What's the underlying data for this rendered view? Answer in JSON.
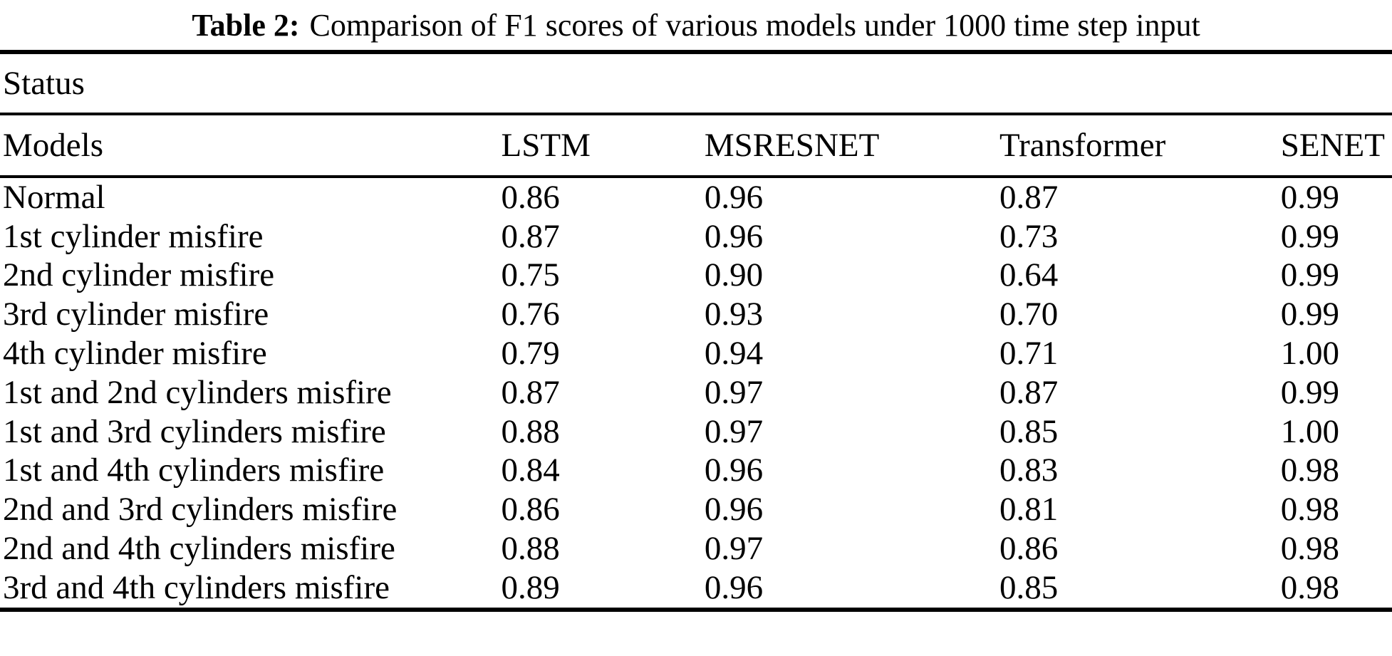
{
  "caption": {
    "label": "Table 2:",
    "text": "Comparison of F1 scores of various models under 1000 time step input"
  },
  "table": {
    "group_header": "Status",
    "columns": [
      "Models",
      "LSTM",
      "MSRESNET",
      "Transformer",
      "SENET"
    ],
    "rows": [
      {
        "label": "Normal",
        "values": [
          "0.86",
          "0.96",
          "0.87",
          "0.99"
        ]
      },
      {
        "label": "1st cylinder misfire",
        "values": [
          "0.87",
          "0.96",
          "0.73",
          "0.99"
        ]
      },
      {
        "label": "2nd cylinder misfire",
        "values": [
          "0.75",
          "0.90",
          "0.64",
          "0.99"
        ]
      },
      {
        "label": "3rd cylinder misfire",
        "values": [
          "0.76",
          "0.93",
          "0.70",
          "0.99"
        ]
      },
      {
        "label": "4th cylinder misfire",
        "values": [
          "0.79",
          "0.94",
          "0.71",
          "1.00"
        ]
      },
      {
        "label": "1st and 2nd cylinders misfire",
        "values": [
          "0.87",
          "0.97",
          "0.87",
          "0.99"
        ]
      },
      {
        "label": "1st and 3rd cylinders misfire",
        "values": [
          "0.88",
          "0.97",
          "0.85",
          "1.00"
        ]
      },
      {
        "label": "1st and 4th cylinders misfire",
        "values": [
          "0.84",
          "0.96",
          "0.83",
          "0.98"
        ]
      },
      {
        "label": "2nd and 3rd cylinders misfire",
        "values": [
          "0.86",
          "0.96",
          "0.81",
          "0.98"
        ]
      },
      {
        "label": "2nd and 4th cylinders misfire",
        "values": [
          "0.88",
          "0.97",
          "0.86",
          "0.98"
        ]
      },
      {
        "label": "3rd and 4th cylinders misfire",
        "values": [
          "0.89",
          "0.96",
          "0.85",
          "0.98"
        ]
      }
    ],
    "colors": {
      "text": "#000000",
      "background": "#ffffff",
      "rule": "#000000"
    }
  }
}
